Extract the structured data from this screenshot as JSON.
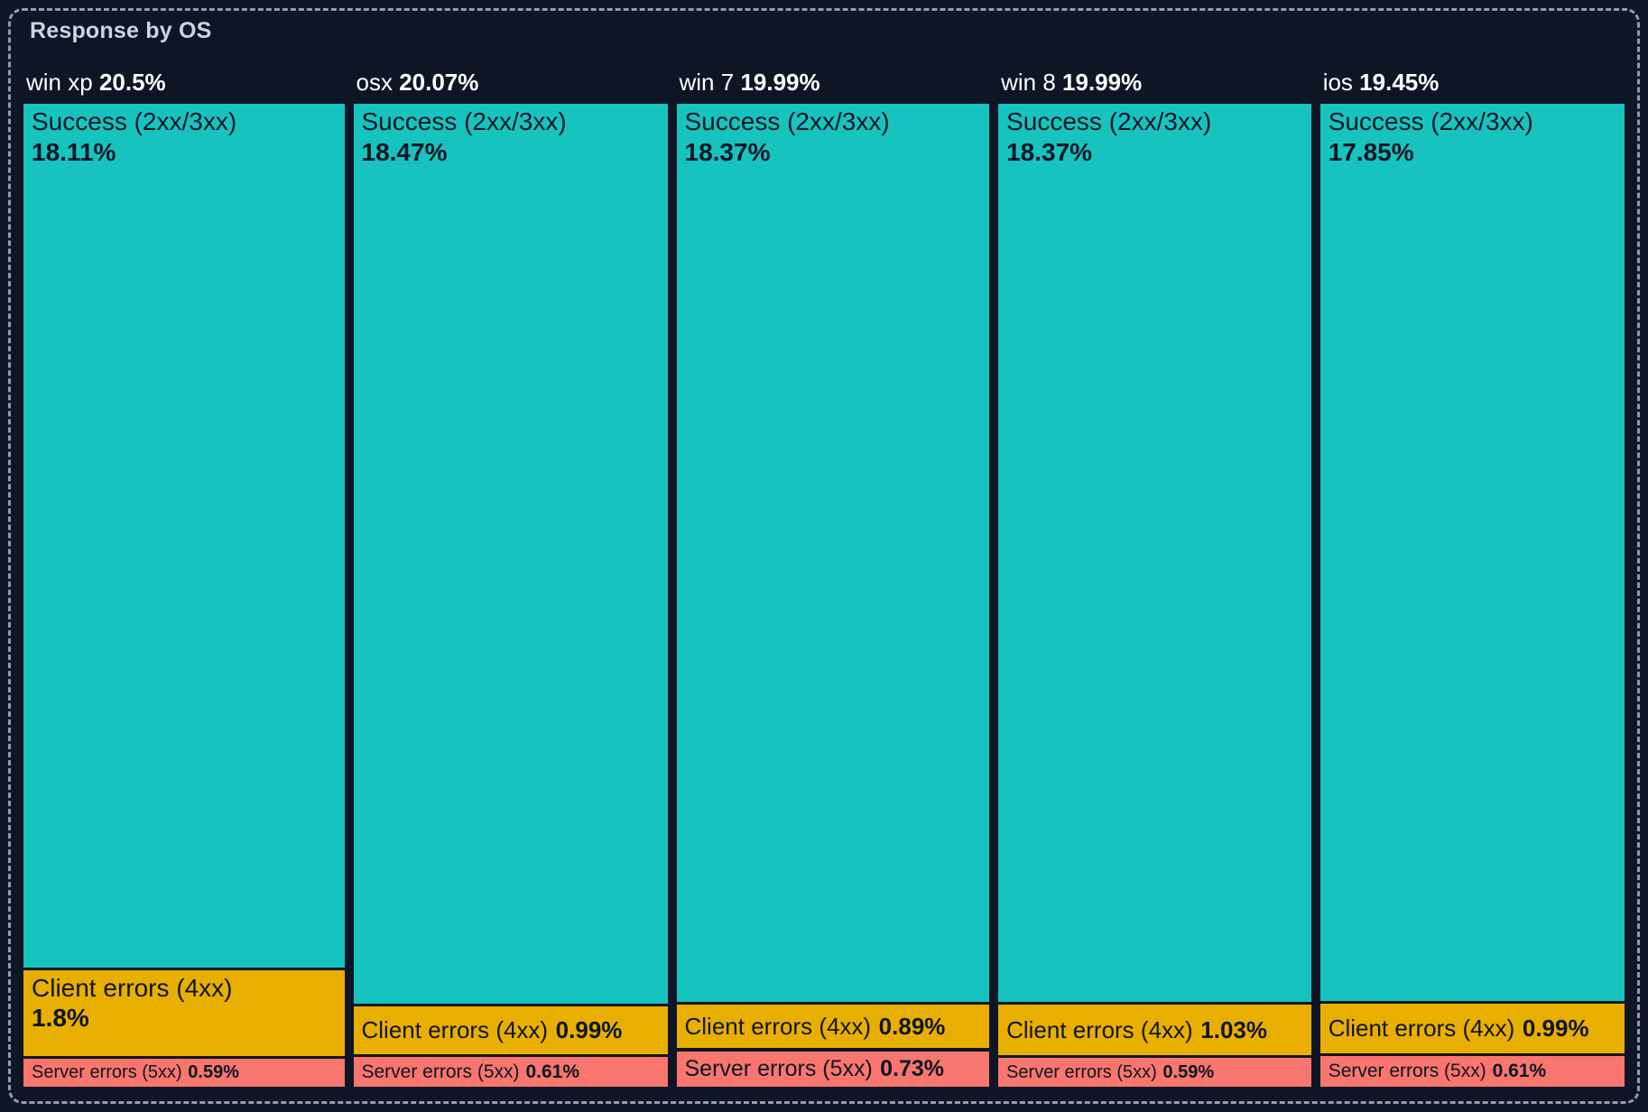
{
  "panel": {
    "title": "Response by OS"
  },
  "colors": {
    "background": "#0e1626",
    "panel_border": "#8b9db5",
    "title_text": "#cbd5e1",
    "header_text": "#ffffff",
    "segment_text": "#0e1626",
    "success": "#17c3be",
    "client_errors": "#e9af00",
    "server_errors": "#f8766d"
  },
  "chart_data": {
    "type": "treemap",
    "title": "Response by OS",
    "orientation": "columns-bottom-aligned",
    "legend_position": "none",
    "units": "%",
    "groups": [
      {
        "name": "win xp",
        "total": "20.5%",
        "total_value": 20.5,
        "segments": [
          {
            "label": "Success (2xx/3xx)",
            "display": "18.11%",
            "value": 18.11,
            "color_key": "success"
          },
          {
            "label": "Client errors (4xx)",
            "display": "1.8%",
            "value": 1.8,
            "color_key": "client_errors"
          },
          {
            "label": "Server errors (5xx)",
            "display": "0.59%",
            "value": 0.59,
            "color_key": "server_errors"
          }
        ]
      },
      {
        "name": "osx",
        "total": "20.07%",
        "total_value": 20.07,
        "segments": [
          {
            "label": "Success (2xx/3xx)",
            "display": "18.47%",
            "value": 18.47,
            "color_key": "success"
          },
          {
            "label": "Client errors (4xx)",
            "display": "0.99%",
            "value": 0.99,
            "color_key": "client_errors"
          },
          {
            "label": "Server errors (5xx)",
            "display": "0.61%",
            "value": 0.61,
            "color_key": "server_errors"
          }
        ]
      },
      {
        "name": "win 7",
        "total": "19.99%",
        "total_value": 19.99,
        "segments": [
          {
            "label": "Success (2xx/3xx)",
            "display": "18.37%",
            "value": 18.37,
            "color_key": "success"
          },
          {
            "label": "Client errors (4xx)",
            "display": "0.89%",
            "value": 0.89,
            "color_key": "client_errors"
          },
          {
            "label": "Server errors (5xx)",
            "display": "0.73%",
            "value": 0.73,
            "color_key": "server_errors"
          }
        ]
      },
      {
        "name": "win 8",
        "total": "19.99%",
        "total_value": 19.99,
        "segments": [
          {
            "label": "Success (2xx/3xx)",
            "display": "18.37%",
            "value": 18.37,
            "color_key": "success"
          },
          {
            "label": "Client errors (4xx)",
            "display": "1.03%",
            "value": 1.03,
            "color_key": "client_errors"
          },
          {
            "label": "Server errors (5xx)",
            "display": "0.59%",
            "value": 0.59,
            "color_key": "server_errors"
          }
        ]
      },
      {
        "name": "ios",
        "total": "19.45%",
        "total_value": 19.45,
        "segments": [
          {
            "label": "Success (2xx/3xx)",
            "display": "17.85%",
            "value": 17.85,
            "color_key": "success"
          },
          {
            "label": "Client errors (4xx)",
            "display": "0.99%",
            "value": 0.99,
            "color_key": "client_errors"
          },
          {
            "label": "Server errors (5xx)",
            "display": "0.61%",
            "value": 0.61,
            "color_key": "server_errors"
          }
        ]
      }
    ]
  }
}
